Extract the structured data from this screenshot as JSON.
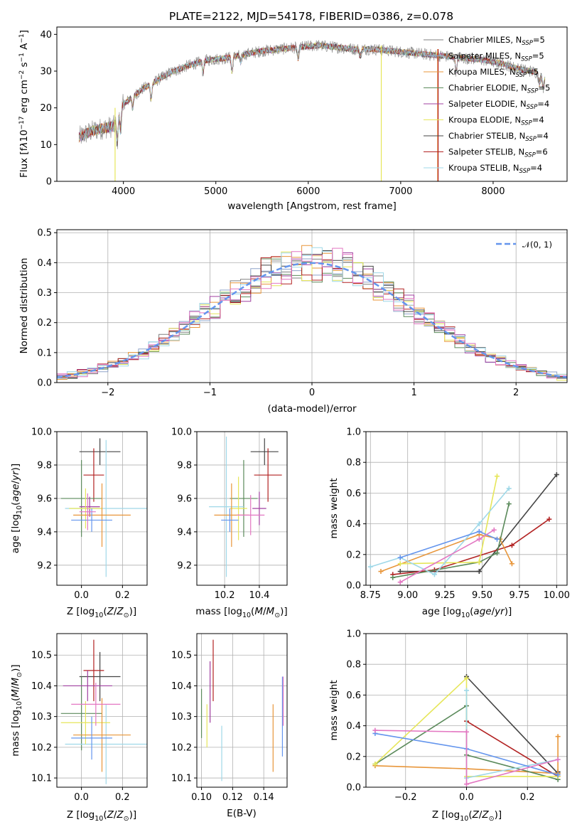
{
  "chart_data": [
    {
      "id": "spectrum",
      "type": "line",
      "title": "PLATE=2122, MJD=54178, FIBERID=0386, z=0.078",
      "xlabel": "wavelength [Angstrom, rest frame]",
      "ylabel": "Flux [fλ10⁻¹⁷ erg cm⁻² s⁻¹ A⁻¹]",
      "xlim": [
        3280,
        8800
      ],
      "ylim": [
        0,
        42
      ],
      "xticks": [
        4000,
        5000,
        6000,
        7000,
        8000
      ],
      "yticks": [
        0,
        10,
        20,
        30,
        40
      ],
      "grid": false,
      "legend_position": "top-right",
      "legend": [
        {
          "name": "Chabrier MILES, N_SSP=5",
          "color": "#808080"
        },
        {
          "name": "Salpeter MILES, N_SSP=5",
          "color": "#8fa3c9"
        },
        {
          "name": "Kroupa MILES, N_SSP=5",
          "color": "#e8963a"
        },
        {
          "name": "Chabrier ELODIE, N_SSP=5",
          "color": "#5b8a5b"
        },
        {
          "name": "Salpeter ELODIE, N_SSP=4",
          "color": "#a040a0"
        },
        {
          "name": "Kroupa ELODIE, N_SSP=4",
          "color": "#e6e65a"
        },
        {
          "name": "Chabrier STELIB, N_SSP=4",
          "color": "#444444"
        },
        {
          "name": "Salpeter STELIB, N_SSP=6",
          "color": "#b22222"
        },
        {
          "name": "Kroupa STELIB, N_SSP=4",
          "color": "#9fd8e8"
        }
      ],
      "continuum": {
        "x": [
          3520,
          3600,
          3700,
          3800,
          3900,
          3950,
          4000,
          4100,
          4200,
          4300,
          4400,
          4500,
          4700,
          4900,
          5100,
          5300,
          5500,
          5700,
          5900,
          6100,
          6300,
          6500,
          6700,
          6900,
          7100,
          7300,
          7500,
          7700,
          7900,
          8100,
          8300,
          8500,
          8560
        ],
        "y": [
          12,
          13,
          14,
          14.5,
          15,
          18,
          21,
          23,
          25,
          26.5,
          28,
          29.5,
          31.5,
          33,
          33.5,
          34.5,
          35.5,
          36,
          36.5,
          37,
          36.5,
          36,
          36,
          35.5,
          35,
          34.5,
          34,
          33.5,
          33,
          32,
          30.5,
          29.5,
          28
        ]
      },
      "spikes": [
        {
          "x": 3910,
          "y_low": 0,
          "y_high": 20,
          "color": "#e6e65a"
        },
        {
          "x": 6790,
          "y_low": 0,
          "y_high": 37,
          "color": "#e6e65a"
        },
        {
          "x": 7400,
          "y_low": 0,
          "y_high": 36,
          "color": "#e8963a"
        },
        {
          "x": 7405,
          "y_low": 0,
          "y_high": 36,
          "color": "#b22222"
        }
      ]
    },
    {
      "id": "residuals",
      "type": "histogram",
      "xlabel": "(data-model)/error",
      "ylabel": "Normed distribution",
      "xlim": [
        -2.5,
        2.5
      ],
      "ylim": [
        0,
        0.51
      ],
      "xticks": [
        -2,
        -1,
        0,
        1,
        2
      ],
      "xticklabels": [
        "−2",
        "−1",
        "0",
        "1",
        "2"
      ],
      "yticks": [
        0,
        0.1,
        0.2,
        0.3,
        0.4,
        0.5
      ],
      "yticklabels": [
        "0.0",
        "0.1",
        "0.2",
        "0.3",
        "0.4",
        "0.5"
      ],
      "grid": true,
      "legend_position": "top-right",
      "legend": [
        {
          "name": "𝒩(0, 1)",
          "color": "#6495ed",
          "style": "dashed"
        }
      ],
      "bin_width": 0.1,
      "bin_start": -2.5,
      "bin_count": 50
    },
    {
      "id": "age_vs_Z",
      "type": "errorbar",
      "xlabel": "Z [log₁₀(Z/Z⊙)]",
      "ylabel": "age  [log₁₀(age/yr)]",
      "xlim": [
        -0.12,
        0.32
      ],
      "ylim": [
        9.08,
        10.0
      ],
      "xticks": [
        0.0,
        0.2
      ],
      "xticklabels": [
        "0.0",
        "0.2"
      ],
      "yticks": [
        9.2,
        9.4,
        9.6,
        9.8,
        10.0
      ],
      "yticklabels": [
        "9.2",
        "9.4",
        "9.6",
        "9.8",
        "10.0"
      ],
      "grid": true,
      "points": [
        {
          "x": 0.09,
          "y": 9.88,
          "xerr": 0.1,
          "yerr": 0.08,
          "color": "#444444"
        },
        {
          "x": 0.06,
          "y": 9.74,
          "xerr": 0.05,
          "yerr": 0.16,
          "color": "#b22222"
        },
        {
          "x": 0.0,
          "y": 9.6,
          "xerr": 0.1,
          "yerr": 0.23,
          "color": "#5b8a5b"
        },
        {
          "x": 0.04,
          "y": 9.55,
          "xerr": 0.05,
          "yerr": 0.06,
          "color": "#a040a0"
        },
        {
          "x": 0.12,
          "y": 9.54,
          "xerr": 0.2,
          "yerr": 0.41,
          "color": "#9fd8e8"
        },
        {
          "x": 0.02,
          "y": 9.54,
          "xerr": 0.08,
          "yerr": 0.12,
          "color": "#e6e65a"
        },
        {
          "x": 0.1,
          "y": 9.5,
          "xerr": 0.14,
          "yerr": 0.19,
          "color": "#e8963a"
        },
        {
          "x": 0.05,
          "y": 9.47,
          "xerr": 0.1,
          "yerr": 0.07,
          "color": "#6495ed"
        },
        {
          "x": 0.03,
          "y": 9.52,
          "xerr": 0.04,
          "yerr": 0.11,
          "color": "#e377c2"
        }
      ]
    },
    {
      "id": "age_vs_mass",
      "type": "errorbar",
      "xlabel": "mass [log₁₀(M/M⊙)]",
      "ylabel": "",
      "xlim": [
        10.04,
        10.56
      ],
      "ylim": [
        9.08,
        10.0
      ],
      "xticks": [
        10.2,
        10.4
      ],
      "xticklabels": [
        "10.2",
        "10.4"
      ],
      "yticks": [
        9.2,
        9.4,
        9.6,
        9.8,
        10.0
      ],
      "yticklabels": [
        "9.2",
        "9.4",
        "9.6",
        "9.8",
        "10.0"
      ],
      "grid": true,
      "points": [
        {
          "x": 10.43,
          "y": 9.88,
          "xerr": 0.08,
          "yerr": 0.08,
          "color": "#444444"
        },
        {
          "x": 10.45,
          "y": 9.74,
          "xerr": 0.08,
          "yerr": 0.16,
          "color": "#b22222"
        },
        {
          "x": 10.31,
          "y": 9.6,
          "xerr": 0.08,
          "yerr": 0.23,
          "color": "#5b8a5b"
        },
        {
          "x": 10.4,
          "y": 9.54,
          "xerr": 0.04,
          "yerr": 0.1,
          "color": "#a040a0"
        },
        {
          "x": 10.21,
          "y": 9.55,
          "xerr": 0.1,
          "yerr": 0.42,
          "color": "#9fd8e8"
        },
        {
          "x": 10.28,
          "y": 9.54,
          "xerr": 0.05,
          "yerr": 0.19,
          "color": "#e6e65a"
        },
        {
          "x": 10.24,
          "y": 9.5,
          "xerr": 0.1,
          "yerr": 0.19,
          "color": "#e8963a"
        },
        {
          "x": 10.23,
          "y": 9.47,
          "xerr": 0.05,
          "yerr": 0.07,
          "color": "#6495ed"
        },
        {
          "x": 10.35,
          "y": 9.5,
          "xerr": 0.08,
          "yerr": 0.12,
          "color": "#e377c2"
        }
      ]
    },
    {
      "id": "weight_vs_age",
      "type": "line",
      "xlabel": "age  [log₁₀(age/yr)]",
      "ylabel": "mass weight",
      "xlim": [
        8.72,
        10.07
      ],
      "ylim": [
        0,
        1.0
      ],
      "xticks": [
        8.75,
        9.0,
        9.25,
        9.5,
        9.75,
        10.0
      ],
      "xticklabels": [
        "8.75",
        "9.00",
        "9.25",
        "9.50",
        "9.75",
        "10.00"
      ],
      "yticks": [
        0,
        0.2,
        0.4,
        0.6,
        0.8,
        1.0
      ],
      "yticklabels": [
        "0.0",
        "0.2",
        "0.4",
        "0.6",
        "0.8",
        "1.0"
      ],
      "grid": true,
      "series": [
        {
          "color": "#444444",
          "x": [
            8.95,
            9.48,
            9.48,
            10.0
          ],
          "y": [
            0.09,
            0.09,
            0.09,
            0.72
          ]
        },
        {
          "color": "#b22222",
          "x": [
            8.9,
            9.18,
            9.7,
            9.95
          ],
          "y": [
            0.07,
            0.1,
            0.26,
            0.43
          ]
        },
        {
          "color": "#e8963a",
          "x": [
            8.82,
            9.48,
            9.62,
            9.7
          ],
          "y": [
            0.09,
            0.33,
            0.3,
            0.14
          ]
        },
        {
          "color": "#5b8a5b",
          "x": [
            8.9,
            9.48,
            9.6,
            9.68
          ],
          "y": [
            0.05,
            0.15,
            0.21,
            0.53
          ]
        },
        {
          "color": "#e6e65a",
          "x": [
            8.95,
            9.48,
            9.6
          ],
          "y": [
            0.14,
            0.15,
            0.71
          ]
        },
        {
          "color": "#9fd8e8",
          "x": [
            8.75,
            8.95,
            9.18,
            9.48,
            9.68
          ],
          "y": [
            0.12,
            0.18,
            0.07,
            0.4,
            0.63
          ]
        },
        {
          "color": "#6495ed",
          "x": [
            8.95,
            9.48,
            9.6
          ],
          "y": [
            0.18,
            0.35,
            0.3
          ]
        },
        {
          "color": "#e377c2",
          "x": [
            8.95,
            9.48,
            9.58
          ],
          "y": [
            0.02,
            0.3,
            0.36
          ]
        }
      ]
    },
    {
      "id": "mass_vs_Z",
      "type": "errorbar",
      "xlabel": "Z [log₁₀(Z/Z⊙)]",
      "ylabel": "mass [log₁₀(M/M⊙)]",
      "xlim": [
        -0.12,
        0.32
      ],
      "ylim": [
        10.07,
        10.57
      ],
      "xticks": [
        0.0,
        0.2
      ],
      "xticklabels": [
        "0.0",
        "0.2"
      ],
      "yticks": [
        10.1,
        10.2,
        10.3,
        10.4,
        10.5
      ],
      "yticklabels": [
        "10.1",
        "10.2",
        "10.3",
        "10.4",
        "10.5"
      ],
      "grid": true,
      "points": [
        {
          "x": 0.09,
          "y": 10.43,
          "xerr": 0.1,
          "yerr": 0.08,
          "color": "#444444"
        },
        {
          "x": 0.06,
          "y": 10.45,
          "xerr": 0.05,
          "yerr": 0.1,
          "color": "#b22222"
        },
        {
          "x": 0.0,
          "y": 10.31,
          "xerr": 0.1,
          "yerr": 0.12,
          "color": "#5b8a5b"
        },
        {
          "x": 0.03,
          "y": 10.4,
          "xerr": 0.12,
          "yerr": 0.05,
          "color": "#a040a0"
        },
        {
          "x": 0.12,
          "y": 10.21,
          "xerr": 0.2,
          "yerr": 0.13,
          "color": "#9fd8e8"
        },
        {
          "x": 0.02,
          "y": 10.28,
          "xerr": 0.12,
          "yerr": 0.07,
          "color": "#e6e65a"
        },
        {
          "x": 0.1,
          "y": 10.24,
          "xerr": 0.14,
          "yerr": 0.12,
          "color": "#e8963a"
        },
        {
          "x": 0.05,
          "y": 10.23,
          "xerr": 0.1,
          "yerr": 0.07,
          "color": "#6495ed"
        },
        {
          "x": 0.07,
          "y": 10.34,
          "xerr": 0.12,
          "yerr": 0.07,
          "color": "#e377c2"
        }
      ]
    },
    {
      "id": "mass_vs_ebv",
      "type": "errorbar",
      "xlabel": "E(B-V)",
      "ylabel": "",
      "xlim": [
        0.097,
        0.155
      ],
      "ylim": [
        10.07,
        10.57
      ],
      "xticks": [
        0.1,
        0.12,
        0.14
      ],
      "xticklabels": [
        "0.10",
        "0.12",
        "0.14"
      ],
      "yticks": [
        10.1,
        10.2,
        10.3,
        10.4,
        10.5
      ],
      "yticklabels": [
        "10.1",
        "10.2",
        "10.3",
        "10.4",
        "10.5"
      ],
      "grid": true,
      "points": [
        {
          "x": 0.1,
          "y": 10.31,
          "xerr": 0,
          "yerr": 0.08,
          "color": "#5b8a5b"
        },
        {
          "x": 0.1055,
          "y": 10.38,
          "xerr": 0,
          "yerr": 0.1,
          "color": "#a040a0"
        },
        {
          "x": 0.1075,
          "y": 10.45,
          "xerr": 0,
          "yerr": 0.1,
          "color": "#b22222"
        },
        {
          "x": 0.1035,
          "y": 10.27,
          "xerr": 0,
          "yerr": 0.07,
          "color": "#e6e65a"
        },
        {
          "x": 0.113,
          "y": 10.18,
          "xerr": 0,
          "yerr": 0.09,
          "color": "#9fd8e8"
        },
        {
          "x": 0.146,
          "y": 10.23,
          "xerr": 0,
          "yerr": 0.11,
          "color": "#e8963a"
        },
        {
          "x": 0.152,
          "y": 10.3,
          "xerr": 0,
          "yerr": 0.13,
          "color": "#6495ed"
        },
        {
          "x": 0.1525,
          "y": 10.35,
          "xerr": 0,
          "yerr": 0.08,
          "color": "#e377c2"
        }
      ]
    },
    {
      "id": "weight_vs_Z",
      "type": "line",
      "xlabel": "Z [log₁₀(Z/Z⊙)]",
      "ylabel": "mass weight",
      "xlim": [
        -0.33,
        0.33
      ],
      "ylim": [
        0,
        1.0
      ],
      "xticks": [
        -0.2,
        0.0,
        0.2
      ],
      "xticklabels": [
        "−0.2",
        "0.0",
        "0.2"
      ],
      "yticks": [
        0,
        0.2,
        0.4,
        0.6,
        0.8,
        1.0
      ],
      "yticklabels": [
        "0.0",
        "0.2",
        "0.4",
        "0.6",
        "0.8",
        "1.0"
      ],
      "grid": true,
      "series": [
        {
          "color": "#444444",
          "x": [
            0.0,
            0.3,
            0.3
          ],
          "y": [
            0.72,
            0.09,
            0.1
          ]
        },
        {
          "color": "#b22222",
          "x": [
            0.0,
            0.3
          ],
          "y": [
            0.43,
            0.07
          ]
        },
        {
          "color": "#e8963a",
          "x": [
            -0.3,
            0.0,
            0.3,
            0.3
          ],
          "y": [
            0.14,
            0.12,
            0.09,
            0.33
          ]
        },
        {
          "color": "#5b8a5b",
          "x": [
            -0.3,
            0.0,
            0.0,
            0.3
          ],
          "y": [
            0.15,
            0.53,
            0.21,
            0.05
          ]
        },
        {
          "color": "#e6e65a",
          "x": [
            -0.3,
            0.0,
            0.0,
            0.3
          ],
          "y": [
            0.15,
            0.71,
            0.07,
            0.07
          ]
        },
        {
          "color": "#9fd8e8",
          "x": [
            0.0,
            0.0,
            0.3
          ],
          "y": [
            0.63,
            0.06,
            0.18
          ]
        },
        {
          "color": "#6495ed",
          "x": [
            -0.3,
            0.0,
            0.3
          ],
          "y": [
            0.35,
            0.25,
            0.08
          ]
        },
        {
          "color": "#e377c2",
          "x": [
            -0.3,
            0.0,
            0.0,
            0.3
          ],
          "y": [
            0.37,
            0.36,
            0.02,
            0.18
          ]
        }
      ]
    }
  ]
}
